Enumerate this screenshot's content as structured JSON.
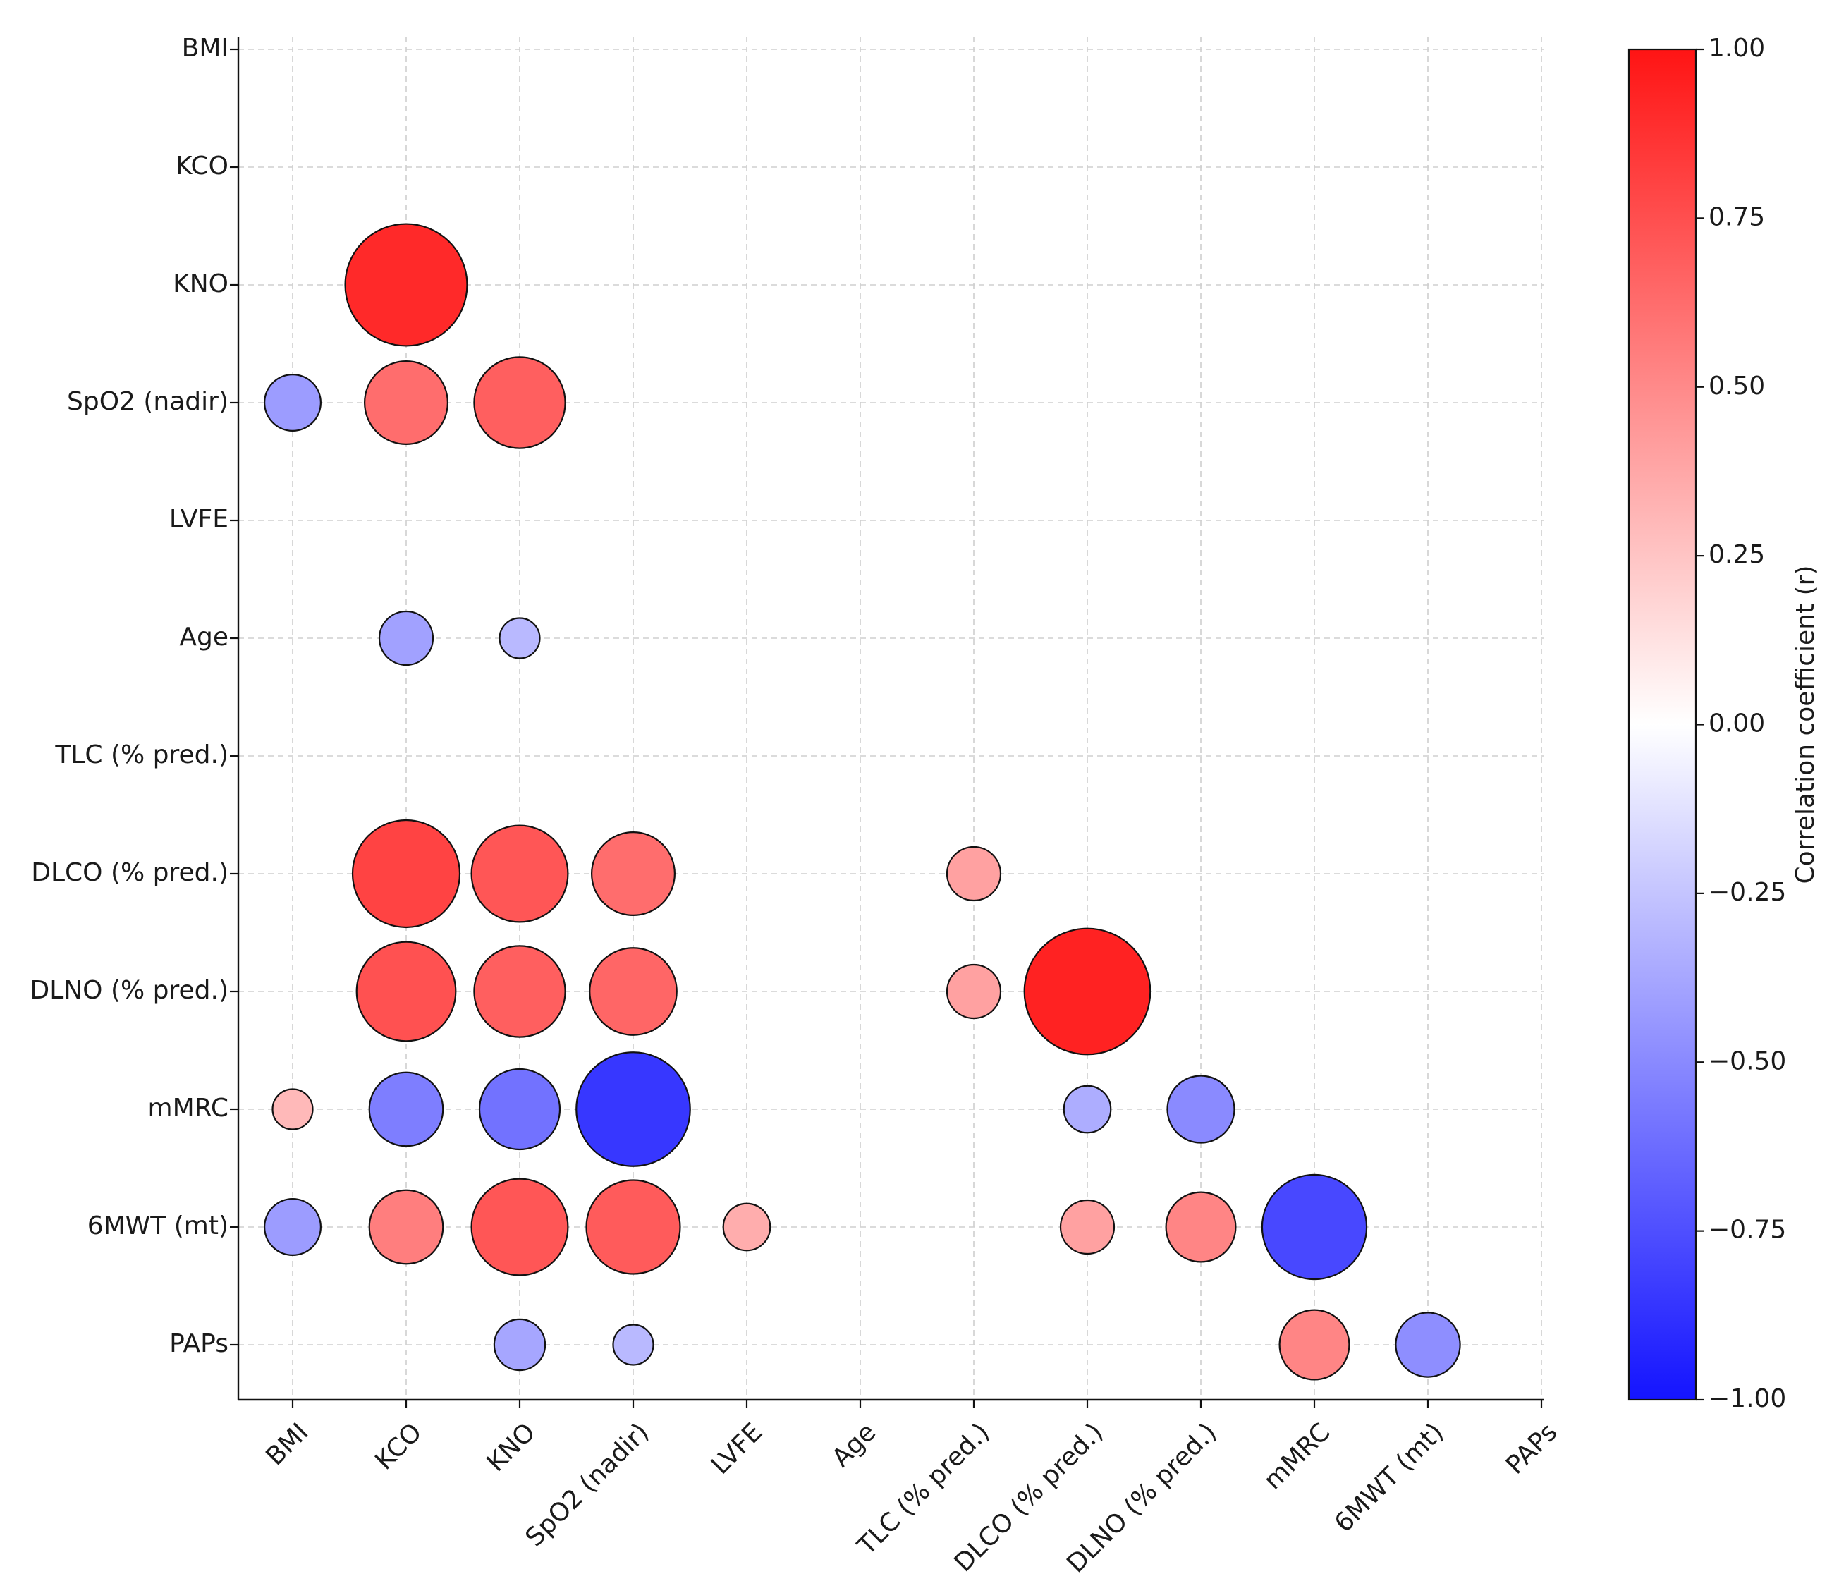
{
  "chart_data": {
    "type": "bubble-correlation-matrix",
    "variables": [
      "BMI",
      "KCO",
      "KNO",
      "SpO2 (nadir)",
      "LVFE",
      "Age",
      "TLC (% pred.)",
      "DLCO (% pred.)",
      "DLNO (% pred.)",
      "mMRC",
      "6MWT (mt)",
      "PAPs"
    ],
    "cells": [
      {
        "row": "KNO",
        "col": "KCO",
        "r": 0.91
      },
      {
        "row": "SpO2 (nadir)",
        "col": "BMI",
        "r": -0.42
      },
      {
        "row": "SpO2 (nadir)",
        "col": "KCO",
        "r": 0.62
      },
      {
        "row": "SpO2 (nadir)",
        "col": "KNO",
        "r": 0.68
      },
      {
        "row": "Age",
        "col": "KCO",
        "r": -0.4
      },
      {
        "row": "Age",
        "col": "KNO",
        "r": -0.3
      },
      {
        "row": "DLCO (% pred.)",
        "col": "KCO",
        "r": 0.8
      },
      {
        "row": "DLCO (% pred.)",
        "col": "KNO",
        "r": 0.72
      },
      {
        "row": "DLCO (% pred.)",
        "col": "SpO2 (nadir)",
        "r": 0.62
      },
      {
        "row": "DLCO (% pred.)",
        "col": "TLC (% pred.)",
        "r": 0.4
      },
      {
        "row": "DLNO (% pred.)",
        "col": "KCO",
        "r": 0.74
      },
      {
        "row": "DLNO (% pred.)",
        "col": "KNO",
        "r": 0.68
      },
      {
        "row": "DLNO (% pred.)",
        "col": "SpO2 (nadir)",
        "r": 0.65
      },
      {
        "row": "DLNO (% pred.)",
        "col": "TLC (% pred.)",
        "r": 0.4
      },
      {
        "row": "DLNO (% pred.)",
        "col": "DLCO (% pred.)",
        "r": 0.94
      },
      {
        "row": "mMRC",
        "col": "BMI",
        "r": 0.3
      },
      {
        "row": "mMRC",
        "col": "KCO",
        "r": -0.55
      },
      {
        "row": "mMRC",
        "col": "KNO",
        "r": -0.6
      },
      {
        "row": "mMRC",
        "col": "SpO2 (nadir)",
        "r": -0.85
      },
      {
        "row": "mMRC",
        "col": "DLCO (% pred.)",
        "r": -0.35
      },
      {
        "row": "mMRC",
        "col": "DLNO (% pred.)",
        "r": -0.5
      },
      {
        "row": "6MWT (mt)",
        "col": "BMI",
        "r": -0.42
      },
      {
        "row": "6MWT (mt)",
        "col": "KCO",
        "r": 0.55
      },
      {
        "row": "6MWT (mt)",
        "col": "KNO",
        "r": 0.72
      },
      {
        "row": "6MWT (mt)",
        "col": "SpO2 (nadir)",
        "r": 0.7
      },
      {
        "row": "6MWT (mt)",
        "col": "LVFE",
        "r": 0.35
      },
      {
        "row": "6MWT (mt)",
        "col": "DLCO (% pred.)",
        "r": 0.4
      },
      {
        "row": "6MWT (mt)",
        "col": "DLNO (% pred.)",
        "r": 0.52
      },
      {
        "row": "6MWT (mt)",
        "col": "mMRC",
        "r": -0.78
      },
      {
        "row": "PAPs",
        "col": "KNO",
        "r": -0.38
      },
      {
        "row": "PAPs",
        "col": "SpO2 (nadir)",
        "r": -0.3
      },
      {
        "row": "PAPs",
        "col": "mMRC",
        "r": 0.52
      },
      {
        "row": "PAPs",
        "col": "6MWT (mt)",
        "r": -0.48
      }
    ],
    "colorbar": {
      "label": "Correlation coefficient (r)",
      "range": [
        -1.0,
        1.0
      ],
      "ticks": [
        "1.00",
        "0.75",
        "0.50",
        "0.25",
        "0.00",
        "−0.25",
        "−0.50",
        "−0.75",
        "−1.00"
      ],
      "colors": {
        "min": "#1414ff",
        "mid": "#ffffff",
        "max": "#ff1414"
      }
    },
    "grid": true
  }
}
